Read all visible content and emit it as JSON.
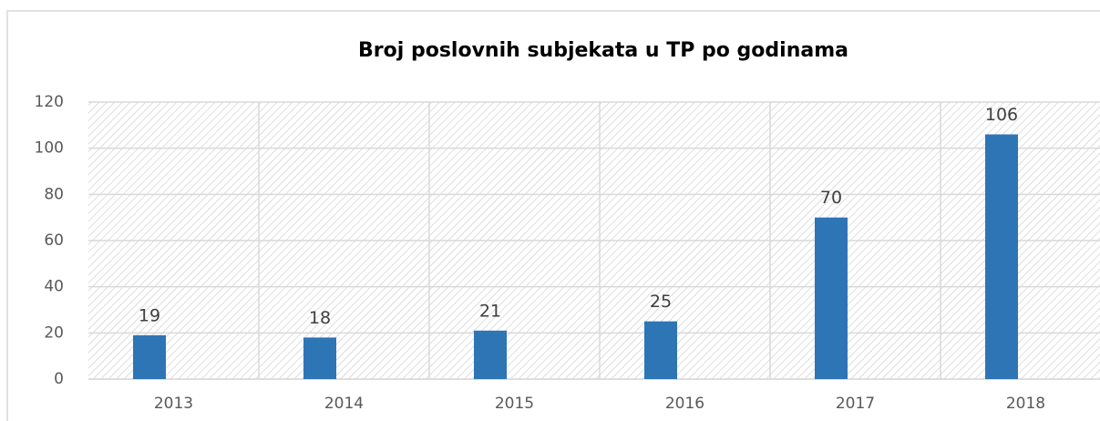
{
  "chart_data": {
    "type": "bar",
    "title": "Broj poslovnih subjekata u TP po godinama",
    "categories": [
      "2013",
      "2014",
      "2015",
      "2016",
      "2017",
      "2018"
    ],
    "values": [
      19,
      18,
      21,
      25,
      70,
      106
    ],
    "color": "#2e75b6",
    "ylim": [
      0,
      120
    ],
    "yticks": [
      0,
      20,
      40,
      60,
      80,
      100,
      120
    ],
    "grid": true
  }
}
